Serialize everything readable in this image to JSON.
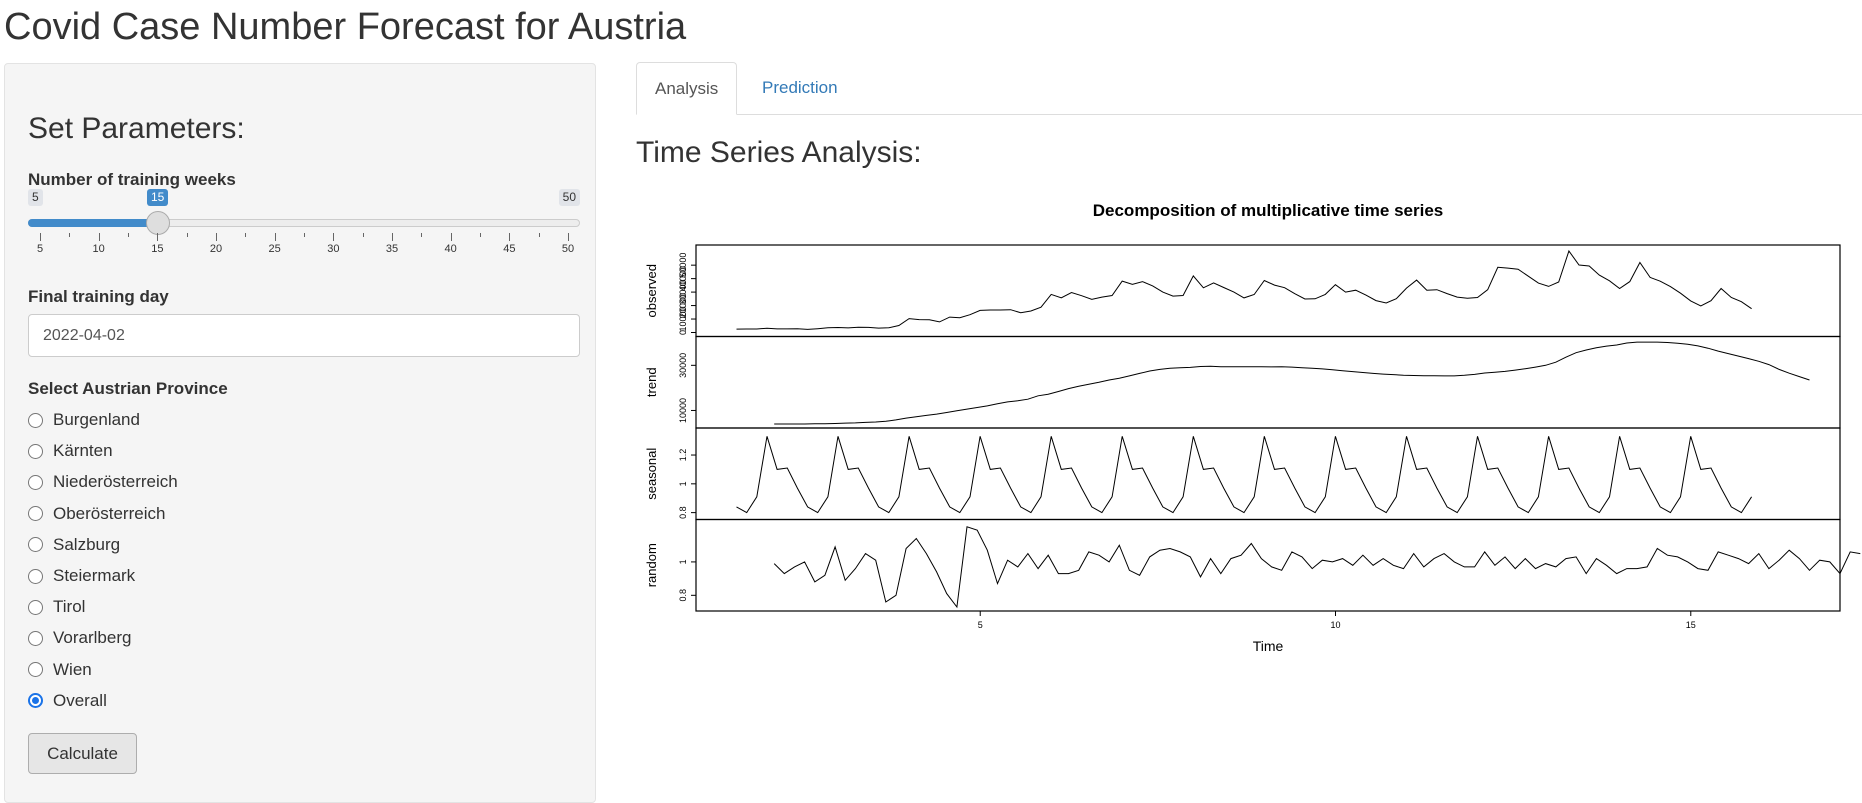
{
  "app": {
    "title": "Covid Case Number Forecast for Austria"
  },
  "sidebar": {
    "heading": "Set Parameters:",
    "slider": {
      "label": "Number of training weeks",
      "min_label": "5",
      "max_label": "50",
      "value_label": "15",
      "min": 5,
      "max": 50,
      "value": 15,
      "grid_labels": [
        "5",
        "10",
        "15",
        "20",
        "25",
        "30",
        "35",
        "40",
        "45",
        "50"
      ]
    },
    "date": {
      "label": "Final training day",
      "value": "2022-04-02"
    },
    "province": {
      "label": "Select Austrian Province",
      "options": [
        "Burgenland",
        "Kärnten",
        "Niederösterreich",
        "Oberösterreich",
        "Salzburg",
        "Steiermark",
        "Tirol",
        "Vorarlberg",
        "Wien",
        "Overall"
      ],
      "selected": "Overall"
    },
    "calculate_label": "Calculate"
  },
  "tabs": [
    {
      "label": "Analysis",
      "active": true
    },
    {
      "label": "Prediction",
      "active": false
    }
  ],
  "main": {
    "heading": "Time Series Analysis:"
  },
  "chart_data": {
    "type": "line",
    "title": "Decomposition of multiplicative time series",
    "xlabel": "Time",
    "xlim": [
      1.0,
      17.1
    ],
    "x_ticks": [
      5,
      10,
      15
    ],
    "panels": [
      {
        "name": "observed",
        "ylim": [
          0,
          62000
        ],
        "y_ticks": [
          0,
          10000,
          20000,
          30000,
          40000,
          50000
        ],
        "x_start": 1.57,
        "values": [
          2500,
          2600,
          2600,
          3200,
          2700,
          2700,
          2800,
          2300,
          2800,
          3500,
          3700,
          3400,
          3900,
          3800,
          3300,
          3500,
          5200,
          10300,
          9600,
          9500,
          7900,
          11400,
          11000,
          13200,
          16400,
          16700,
          16700,
          16900,
          14700,
          16000,
          18800,
          28300,
          25800,
          29700,
          27300,
          24600,
          26300,
          27500,
          38200,
          35800,
          37800,
          34600,
          30000,
          27000,
          27500,
          42000,
          33200,
          36800,
          33400,
          30000,
          25700,
          28200,
          38600,
          35200,
          33300,
          28800,
          24900,
          25000,
          28300,
          35500,
          30000,
          31400,
          27800,
          23700,
          21900,
          25100,
          33000,
          38900,
          31400,
          31800,
          28900,
          26300,
          25500,
          26000,
          31800,
          48400,
          47800,
          47000,
          41800,
          36700,
          34200,
          37500,
          60500,
          50100,
          49400,
          42600,
          38400,
          32700,
          37800,
          52000,
          40900,
          38100,
          34100,
          29200,
          23500,
          19700,
          23600,
          32700,
          26000,
          22900,
          17700
        ]
      },
      {
        "name": "trend",
        "ylim": [
          4000,
          41000
        ],
        "y_ticks": [
          10000,
          30000
        ],
        "x_start": 2.1,
        "values": [
          4000,
          4000,
          4000,
          4000,
          4100,
          4100,
          4200,
          4400,
          4500,
          4700,
          4900,
          5200,
          5800,
          6600,
          7200,
          7800,
          8400,
          9100,
          9900,
          10600,
          11300,
          12000,
          13000,
          13800,
          14300,
          15000,
          16500,
          17200,
          18400,
          19700,
          20700,
          21600,
          22500,
          23500,
          24300,
          25300,
          26400,
          27500,
          28200,
          28700,
          28900,
          29100,
          29500,
          29600,
          29400,
          29400,
          29400,
          29400,
          29400,
          29300,
          29400,
          29200,
          28900,
          28700,
          28400,
          28000,
          27600,
          27200,
          26800,
          26400,
          26100,
          25900,
          25600,
          25500,
          25400,
          25400,
          25300,
          25300,
          25600,
          26000,
          26600,
          26900,
          27300,
          27900,
          28500,
          29200,
          30000,
          31400,
          33600,
          35600,
          36800,
          37800,
          38500,
          39000,
          39900,
          40300,
          40300,
          40300,
          40100,
          39800,
          39300,
          38600,
          37600,
          36300,
          35200,
          34100,
          33000,
          31800,
          30300,
          28200,
          26500,
          25000,
          23500
        ]
      },
      {
        "name": "seasonal",
        "ylim": [
          0.78,
          1.36
        ],
        "y_ticks": [
          0.8,
          1.0,
          1.2
        ],
        "x_start": 1.57,
        "pattern": [
          0.84,
          0.8,
          0.91,
          1.33,
          1.1,
          1.11,
          0.97
        ],
        "n": 101
      },
      {
        "name": "random",
        "ylim": [
          0.73,
          1.23
        ],
        "y_ticks": [
          0.8,
          1.0
        ],
        "x_start": 2.1,
        "values": [
          0.99,
          0.93,
          0.97,
          1.0,
          0.88,
          0.92,
          1.09,
          0.89,
          0.96,
          1.05,
          1.01,
          0.76,
          0.8,
          1.08,
          1.14,
          1.05,
          0.94,
          0.81,
          0.73,
          1.21,
          1.19,
          1.07,
          0.87,
          1.01,
          0.97,
          1.05,
          0.96,
          1.04,
          0.93,
          0.93,
          0.95,
          1.06,
          1.04,
          1.0,
          1.1,
          0.95,
          0.92,
          1.03,
          1.07,
          1.08,
          1.06,
          1.03,
          0.91,
          1.02,
          0.93,
          1.02,
          1.04,
          1.11,
          1.02,
          0.97,
          0.95,
          1.06,
          1.03,
          0.96,
          1.01,
          1.0,
          1.02,
          0.98,
          1.04,
          0.98,
          1.02,
          0.98,
          0.96,
          1.05,
          0.97,
          1.02,
          1.05,
          1.0,
          0.97,
          0.97,
          1.06,
          0.98,
          1.03,
          0.96,
          1.02,
          0.96,
          0.99,
          0.97,
          1.02,
          1.03,
          0.93,
          1.02,
          0.98,
          0.93,
          0.96,
          0.96,
          0.97,
          1.08,
          1.04,
          1.03,
          1.0,
          0.96,
          0.95,
          1.06,
          1.04,
          1.02,
          0.99,
          1.05,
          0.96,
          1.01,
          1.07,
          1.02,
          0.95,
          1.01,
          1.0,
          0.93,
          1.06,
          1.05
        ]
      }
    ]
  }
}
